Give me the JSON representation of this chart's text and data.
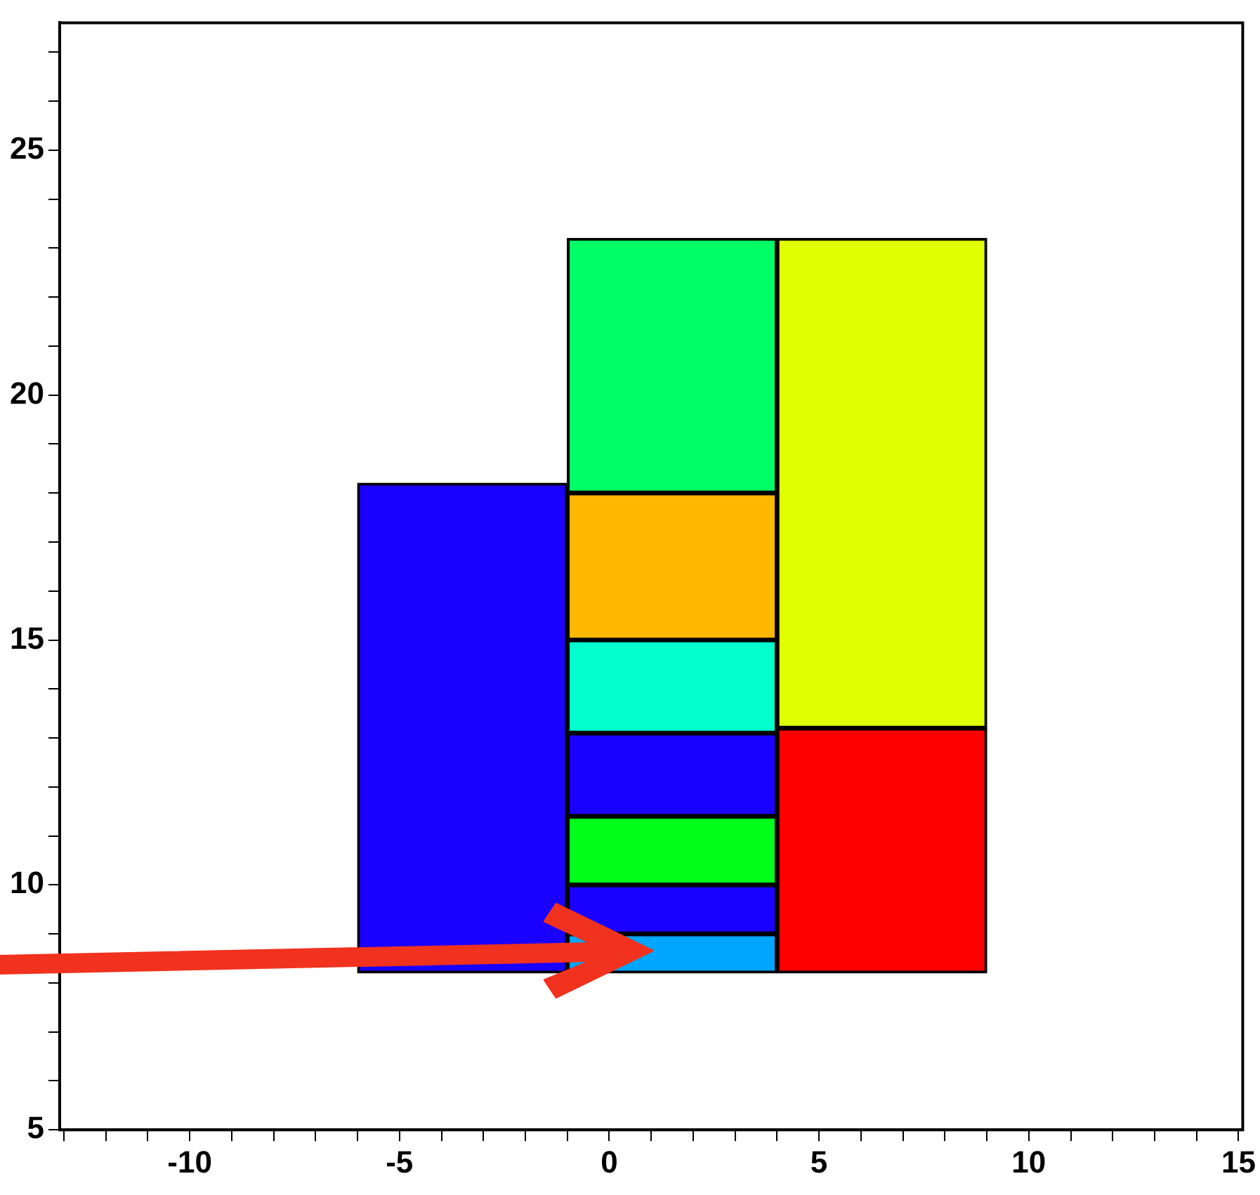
{
  "chart_data": {
    "type": "bar",
    "xlim": [
      -13.1,
      15.1
    ],
    "ylim": [
      5,
      27.6
    ],
    "xticks": [
      {
        "value": -13,
        "label": null
      },
      {
        "value": -12,
        "label": null
      },
      {
        "value": -11,
        "label": null
      },
      -10,
      {
        "value": -9,
        "label": null
      },
      {
        "value": -8,
        "label": null
      },
      {
        "value": -7,
        "label": null
      },
      {
        "value": -6,
        "label": null
      },
      -5,
      {
        "value": -4,
        "label": null
      },
      {
        "value": -3,
        "label": null
      },
      {
        "value": -2,
        "label": null
      },
      {
        "value": -1,
        "label": null
      },
      0,
      {
        "value": 1,
        "label": null
      },
      {
        "value": 2,
        "label": null
      },
      {
        "value": 3,
        "label": null
      },
      {
        "value": 4,
        "label": null
      },
      5,
      {
        "value": 6,
        "label": null
      },
      {
        "value": 7,
        "label": null
      },
      {
        "value": 8,
        "label": null
      },
      {
        "value": 9,
        "label": null
      },
      10,
      {
        "value": 11,
        "label": null
      },
      {
        "value": 12,
        "label": null
      },
      {
        "value": 13,
        "label": null
      },
      {
        "value": 14,
        "label": null
      },
      15
    ],
    "yticks": [
      5,
      {
        "value": 6,
        "label": null
      },
      {
        "value": 7,
        "label": null
      },
      {
        "value": 8,
        "label": null
      },
      {
        "value": 9,
        "label": null
      },
      10,
      {
        "value": 11,
        "label": null
      },
      {
        "value": 12,
        "label": null
      },
      {
        "value": 13,
        "label": null
      },
      {
        "value": 14,
        "label": null
      },
      15,
      {
        "value": 16,
        "label": null
      },
      {
        "value": 17,
        "label": null
      },
      {
        "value": 18,
        "label": null
      },
      {
        "value": 19,
        "label": null
      },
      20,
      {
        "value": 21,
        "label": null
      },
      {
        "value": 22,
        "label": null
      },
      {
        "value": 23,
        "label": null
      },
      {
        "value": 24,
        "label": null
      },
      25,
      {
        "value": 26,
        "label": null
      },
      {
        "value": 27,
        "label": null
      }
    ],
    "series": [
      {
        "color": "#1a00ff",
        "x": [
          -3.5
        ],
        "base": [
          8.2
        ],
        "values": [
          10.0
        ]
      },
      {
        "color": "#00a6ff",
        "x": [
          1.5
        ],
        "base": [
          8.2
        ],
        "values": [
          0.8
        ]
      },
      {
        "color": "#1a00ff",
        "x": [
          1.5
        ],
        "base": [
          9.0
        ],
        "values": [
          1.0
        ]
      },
      {
        "color": "#00ff1a",
        "x": [
          1.5
        ],
        "base": [
          10.0
        ],
        "values": [
          1.4
        ]
      },
      {
        "color": "#1a00ff",
        "x": [
          1.5
        ],
        "base": [
          11.4
        ],
        "values": [
          1.7
        ]
      },
      {
        "color": "#00ffcc",
        "x": [
          1.5
        ],
        "base": [
          13.1
        ],
        "values": [
          1.9
        ]
      },
      {
        "color": "#ffb800",
        "x": [
          1.5
        ],
        "base": [
          15.0
        ],
        "values": [
          3.0
        ]
      },
      {
        "color": "#00ff66",
        "x": [
          1.5
        ],
        "base": [
          18.0
        ],
        "values": [
          5.2
        ]
      },
      {
        "color": "#ff0000",
        "x": [
          6.5
        ],
        "base": [
          8.2
        ],
        "values": [
          5.0
        ]
      },
      {
        "color": "#e0ff00",
        "x": [
          6.5
        ],
        "base": [
          13.2
        ],
        "values": [
          10.0
        ]
      }
    ]
  }
}
